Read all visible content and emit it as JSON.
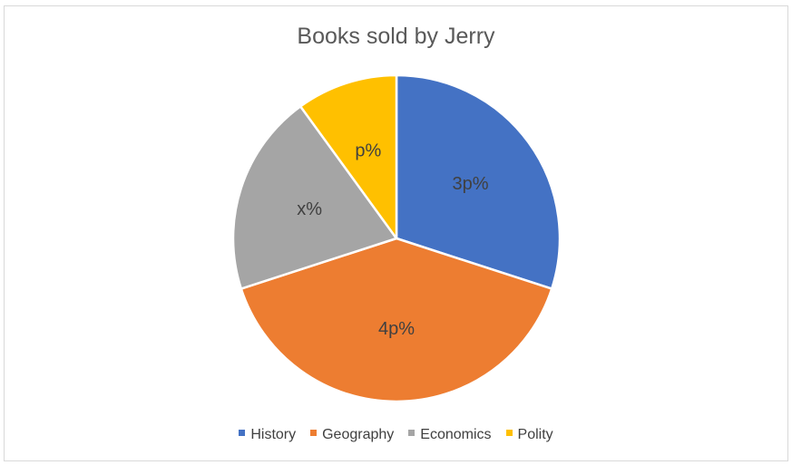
{
  "chart_data": {
    "type": "pie",
    "title": "Books sold by Jerry",
    "slices": [
      {
        "name": "History",
        "value": 30,
        "label": "3p%",
        "color": "#4472C4"
      },
      {
        "name": "Geography",
        "value": 40,
        "label": "4p%",
        "color": "#ED7D31"
      },
      {
        "name": "Economics",
        "value": 20,
        "label": "x%",
        "color": "#A5A5A5"
      },
      {
        "name": "Polity",
        "value": 10,
        "label": "p%",
        "color": "#FFC000"
      }
    ],
    "start_angle_deg": 0,
    "direction": "clockwise",
    "legend_position": "bottom"
  }
}
